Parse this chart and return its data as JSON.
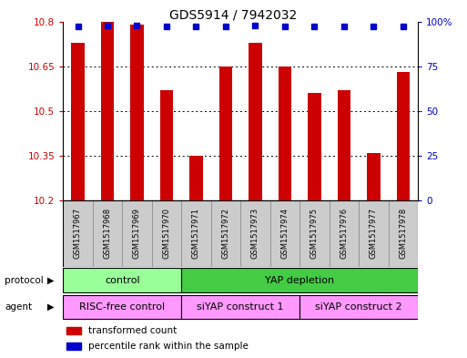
{
  "title": "GDS5914 / 7942032",
  "samples": [
    "GSM1517967",
    "GSM1517968",
    "GSM1517969",
    "GSM1517970",
    "GSM1517971",
    "GSM1517972",
    "GSM1517973",
    "GSM1517974",
    "GSM1517975",
    "GSM1517976",
    "GSM1517977",
    "GSM1517978"
  ],
  "bar_values": [
    10.73,
    10.8,
    10.79,
    10.57,
    10.35,
    10.65,
    10.73,
    10.65,
    10.56,
    10.57,
    10.36,
    10.63
  ],
  "percentile_values": [
    97,
    98,
    98,
    97,
    97,
    97,
    98,
    97,
    97,
    97,
    97,
    97
  ],
  "bar_color": "#cc0000",
  "percentile_color": "#0000cc",
  "ylim_left": [
    10.2,
    10.8
  ],
  "ylim_right": [
    0,
    100
  ],
  "yticks_left": [
    10.2,
    10.35,
    10.5,
    10.65,
    10.8
  ],
  "yticks_right": [
    0,
    25,
    50,
    75,
    100
  ],
  "ytick_labels_left": [
    "10.2",
    "10.35",
    "10.5",
    "10.65",
    "10.8"
  ],
  "ytick_labels_right": [
    "0",
    "25",
    "50",
    "75",
    "100%"
  ],
  "bar_bottom": 10.2,
  "protocol_groups": [
    {
      "text": "control",
      "start": 0,
      "end": 3,
      "color": "#99ff99"
    },
    {
      "text": "YAP depletion",
      "start": 4,
      "end": 11,
      "color": "#44cc44"
    }
  ],
  "agent_groups": [
    {
      "text": "RISC-free control",
      "start": 0,
      "end": 3,
      "color": "#ff99ff"
    },
    {
      "text": "siYAP construct 1",
      "start": 4,
      "end": 7,
      "color": "#ff99ff"
    },
    {
      "text": "siYAP construct 2",
      "start": 8,
      "end": 11,
      "color": "#ff99ff"
    }
  ],
  "legend_items": [
    {
      "color": "#cc0000",
      "label": "transformed count"
    },
    {
      "color": "#0000cc",
      "label": "percentile rank within the sample"
    }
  ],
  "background_color": "#ffffff",
  "sample_box_color": "#cccccc"
}
